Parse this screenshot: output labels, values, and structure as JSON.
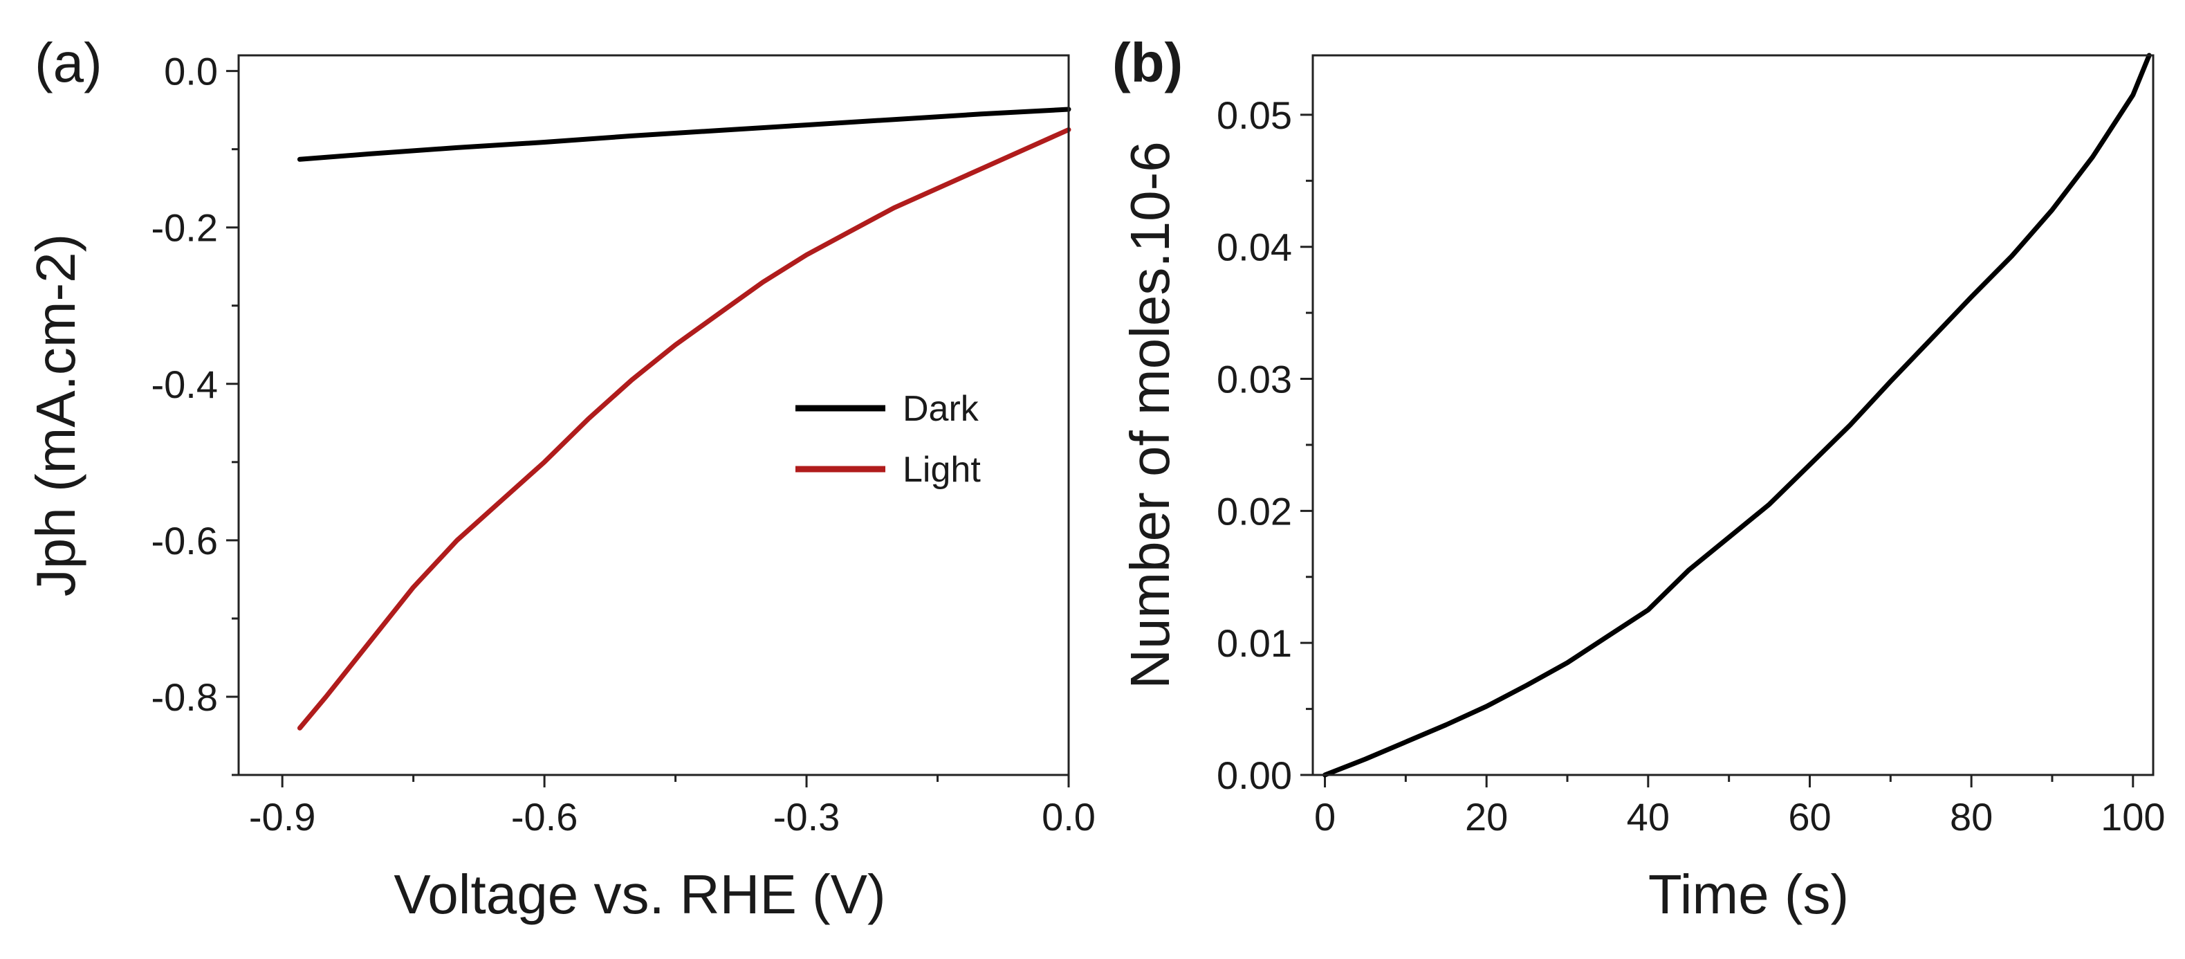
{
  "chart_data": [
    {
      "panel": "(a)",
      "type": "line",
      "xlabel": "Voltage vs. RHE (V)",
      "ylabel": "Jph (mA.cm-2)",
      "xlim": [
        -0.95,
        0.0
      ],
      "ylim": [
        -0.9,
        0.02
      ],
      "x_ticks": [
        -0.9,
        -0.6,
        -0.3,
        0.0
      ],
      "x_tick_labels": [
        "-0.9",
        "-0.6",
        "-0.3",
        "0.0"
      ],
      "y_ticks": [
        0.0,
        -0.2,
        -0.4,
        -0.6,
        -0.8
      ],
      "y_tick_labels": [
        "0.0",
        "-0.2",
        "-0.4",
        "-0.6",
        "-0.8"
      ],
      "legend": "center-right",
      "series": [
        {
          "name": "Dark",
          "color": "#000000",
          "x": [
            -0.88,
            -0.8,
            -0.7,
            -0.6,
            -0.5,
            -0.4,
            -0.3,
            -0.2,
            -0.1,
            0.0
          ],
          "y": [
            -0.113,
            -0.106,
            -0.098,
            -0.091,
            -0.083,
            -0.076,
            -0.069,
            -0.062,
            -0.055,
            -0.049
          ]
        },
        {
          "name": "Light",
          "color": "#b01c1c",
          "x": [
            -0.88,
            -0.85,
            -0.8,
            -0.75,
            -0.7,
            -0.65,
            -0.6,
            -0.55,
            -0.5,
            -0.45,
            -0.4,
            -0.35,
            -0.3,
            -0.25,
            -0.2,
            -0.15,
            -0.1,
            -0.05,
            0.0
          ],
          "y": [
            -0.84,
            -0.8,
            -0.73,
            -0.66,
            -0.6,
            -0.55,
            -0.5,
            -0.445,
            -0.395,
            -0.35,
            -0.31,
            -0.27,
            -0.235,
            -0.205,
            -0.175,
            -0.15,
            -0.125,
            -0.1,
            -0.075
          ]
        }
      ]
    },
    {
      "panel": "(b)",
      "type": "line",
      "xlabel": "Time (s)",
      "ylabel": "Number of moles.10-6",
      "xlim": [
        -1.5,
        102.5
      ],
      "ylim": [
        0.0,
        0.0545
      ],
      "x_ticks": [
        0,
        20,
        40,
        60,
        80,
        100
      ],
      "x_tick_labels": [
        "0",
        "20",
        "40",
        "60",
        "80",
        "100"
      ],
      "y_ticks": [
        0.0,
        0.01,
        0.02,
        0.03,
        0.04,
        0.05
      ],
      "y_tick_labels": [
        "0.00",
        "0.01",
        "0.02",
        "0.03",
        "0.04",
        "0.05"
      ],
      "series": [
        {
          "name": "moles",
          "color": "#000000",
          "x": [
            0,
            5,
            10,
            15,
            20,
            25,
            30,
            35,
            40,
            45,
            50,
            55,
            60,
            65,
            70,
            75,
            80,
            85,
            90,
            95,
            100,
            102
          ],
          "y": [
            0.0,
            0.0012,
            0.0025,
            0.0038,
            0.0052,
            0.0068,
            0.0085,
            0.0105,
            0.0125,
            0.0155,
            0.018,
            0.0205,
            0.0235,
            0.0265,
            0.0298,
            0.033,
            0.0362,
            0.0393,
            0.0428,
            0.0468,
            0.0515,
            0.0545
          ]
        }
      ]
    }
  ]
}
